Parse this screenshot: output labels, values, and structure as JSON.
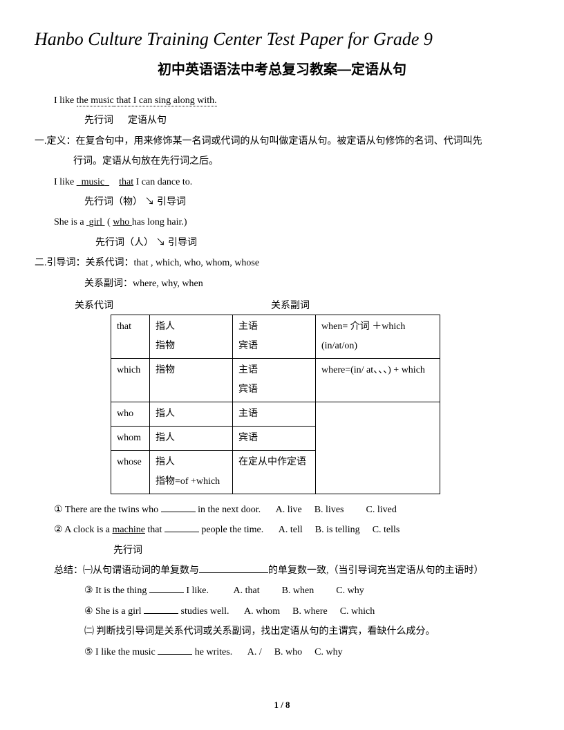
{
  "header": "Hanbo Culture Training Center Test Paper for Grade 9",
  "title": "初中英语语法中考总复习教案—定语从句",
  "ex1": {
    "pre": "I like ",
    "antecedent": "the music",
    "clause": " that I can sing along with.",
    "label1": "先行词",
    "label2": "定语从句"
  },
  "section1": {
    "heading": "一.定义：在复合句中，用来修饰某一名词或代词的从句叫做定语从句。被定语从句修饰的名词、代词叫先",
    "heading2": "行词。定语从句放在先行词之后。",
    "ex_a_pre": "I like   ",
    "ex_a_word": "music",
    "ex_a_mid": "      ",
    "ex_a_that": "that",
    "ex_a_post": " I can dance to.",
    "ex_a_label": "先行词（物）  ↘ 引导词",
    "ex_b_pre": "She    is a  ",
    "ex_b_word": "girl",
    "ex_b_mid": "        ( ",
    "ex_b_who": "who ",
    "ex_b_post": "has long hair.)",
    "ex_b_label": "先行词（人）    ↘ 引导词"
  },
  "section2": {
    "heading": "二.引导词：关系代词：that , which, who, whom, whose",
    "sub": "关系副词：where, why, when",
    "th1": "关系代词",
    "th2": "关系副词"
  },
  "table": {
    "rows": [
      [
        "that",
        "指人\n指物",
        "主语\n宾语",
        "when= 介词 ＋which\n        (in/at/on)"
      ],
      [
        "which",
        "指物",
        "主语\n宾语",
        "where=(in/ at、、、) + which"
      ],
      [
        "who",
        "指人",
        "主语",
        ""
      ],
      [
        "whom",
        "指人",
        "宾语",
        ""
      ],
      [
        "whose",
        "指人\n指物=of +which",
        "在定从中作定语",
        ""
      ]
    ]
  },
  "questions": {
    "q1_pre": "① There are the twins who ",
    "q1_post": " in the next door.",
    "q1_a": "A. live",
    "q1_b": "B. lives",
    "q1_c": "C. lived",
    "q2_pre": "② A clock is a ",
    "q2_word": "machine",
    "q2_mid": " that ",
    "q2_post": " people the time.",
    "q2_a": "A. tell",
    "q2_b": "B. is telling",
    "q2_c": "C. tells",
    "q2_label": "先行词",
    "summary_pre": "总结：㈠从句谓语动词的单复数与",
    "summary_post": "的单复数一致,（当引导词充当定语从句的主语时）",
    "q3_pre": "③ It is the thing ",
    "q3_post": " I like.",
    "q3_a": "A. that",
    "q3_b": "B. when",
    "q3_c": "C. why",
    "q4_pre": "④ She is a girl ",
    "q4_post": " studies well.",
    "q4_a": "A. whom",
    "q4_b": "B. where",
    "q4_c": "C. which",
    "note2": "㈡ 判断找引导词是关系代词或关系副词，找出定语从句的主谓宾，看缺什么成分。",
    "q5_pre": "⑤ I like the music ",
    "q5_post": " he writes.",
    "q5_a": "A. /",
    "q5_b": "B. who",
    "q5_c": "C. why"
  },
  "pagenum": "1 / 8"
}
